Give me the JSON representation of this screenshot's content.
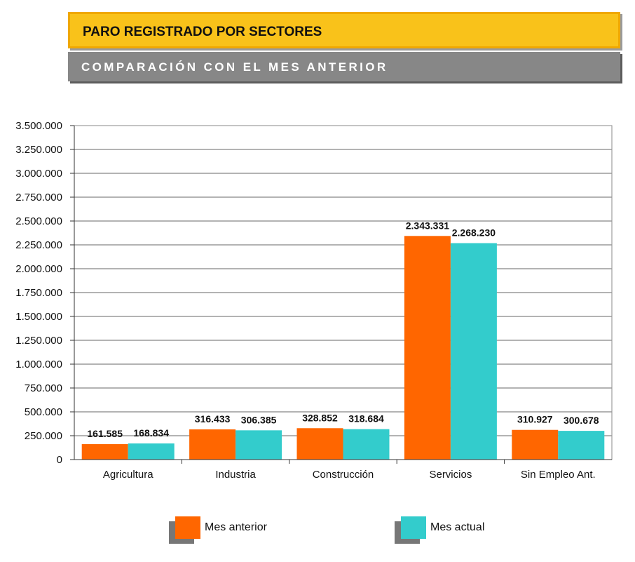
{
  "header": {
    "title": "PARO REGISTRADO POR SECTORES",
    "subtitle": "COMPARACIÓN CON EL MES ANTERIOR"
  },
  "colors": {
    "title_band": "#f9c21a",
    "subtitle_band": "#878787",
    "mes_anterior": "#ff6600",
    "mes_actual": "#33cccc"
  },
  "chart_data": {
    "type": "bar",
    "title": "",
    "xlabel": "",
    "ylabel": "",
    "categories": [
      "Agricultura",
      "Industria",
      "Construcción",
      "Servicios",
      "Sin Empleo Ant."
    ],
    "series": [
      {
        "name": "Mes anterior",
        "color": "#ff6600",
        "values": [
          161585,
          316433,
          328852,
          2343331,
          310927
        ],
        "labels": [
          "161.585",
          "316.433",
          "328.852",
          "2.343.331",
          "310.927"
        ]
      },
      {
        "name": "Mes actual",
        "color": "#33cccc",
        "values": [
          168834,
          306385,
          318684,
          2268230,
          300678
        ],
        "labels": [
          "168.834",
          "306.385",
          "318.684",
          "2.268.230",
          "300.678"
        ]
      }
    ],
    "ylim": [
      0,
      3500000
    ],
    "yticks": [
      0,
      250000,
      500000,
      750000,
      1000000,
      1250000,
      1500000,
      1750000,
      2000000,
      2250000,
      2500000,
      2750000,
      3000000,
      3250000,
      3500000
    ],
    "ytick_labels": [
      "0",
      "250.000",
      "500.000",
      "750.000",
      "1.000.000",
      "1.250.000",
      "1.500.000",
      "1.750.000",
      "2.000.000",
      "2.250.000",
      "2.500.000",
      "2.750.000",
      "3.000.000",
      "3.250.000",
      "3.500.000"
    ],
    "grid": true,
    "legend_position": "bottom"
  }
}
